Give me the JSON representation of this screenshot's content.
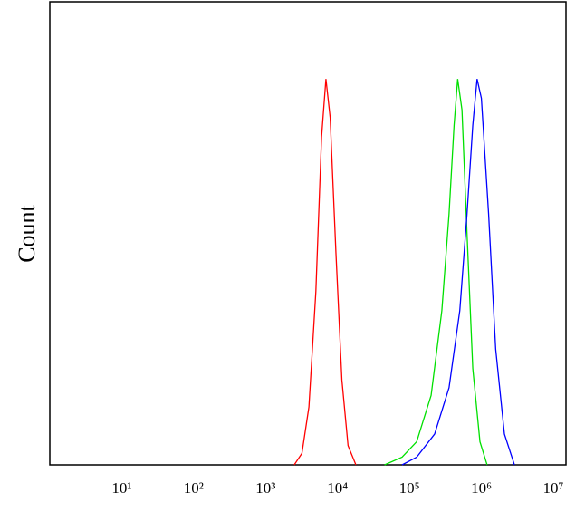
{
  "chart_data": {
    "type": "line",
    "ylabel": "Count",
    "xscale": "log",
    "xlim": [
      1,
      15000000
    ],
    "ylim": [
      0,
      120
    ],
    "xticks": [
      {
        "value": 10,
        "label": "10¹"
      },
      {
        "value": 100,
        "label": "10²"
      },
      {
        "value": 1000,
        "label": "10³"
      },
      {
        "value": 10000,
        "label": "10⁴"
      },
      {
        "value": 100000,
        "label": "10⁵"
      },
      {
        "value": 1000000,
        "label": "10⁶"
      },
      {
        "value": 10000000,
        "label": "10⁷"
      }
    ],
    "series": [
      {
        "color": "#ff0000",
        "x": [
          2500,
          3200,
          4000,
          5000,
          6000,
          6900,
          7900,
          9500,
          11500,
          14000,
          18000
        ],
        "values": [
          0,
          3,
          15,
          45,
          85,
          100,
          90,
          55,
          22,
          5,
          0
        ]
      },
      {
        "color": "#00e000",
        "x": [
          45000,
          79000,
          126000,
          200000,
          282000,
          355000,
          417000,
          468000,
          537000,
          631000,
          759000,
          955000,
          1200000
        ],
        "values": [
          0,
          2,
          6,
          18,
          40,
          65,
          88,
          100,
          92,
          60,
          25,
          6,
          0
        ]
      },
      {
        "color": "#0000ff",
        "x": [
          79000,
          126000,
          224000,
          355000,
          501000,
          631000,
          759000,
          871000,
          1000000,
          1260000,
          1580000,
          2090000,
          2880000
        ],
        "values": [
          0,
          2,
          8,
          20,
          40,
          65,
          88,
          100,
          95,
          65,
          30,
          8,
          0
        ]
      }
    ]
  }
}
